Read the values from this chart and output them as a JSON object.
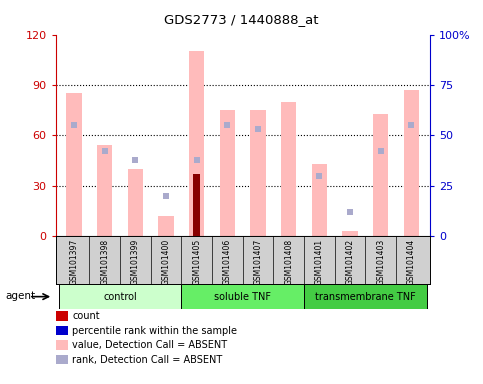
{
  "title": "GDS2773 / 1440888_at",
  "samples": [
    "GSM101397",
    "GSM101398",
    "GSM101399",
    "GSM101400",
    "GSM101405",
    "GSM101406",
    "GSM101407",
    "GSM101408",
    "GSM101401",
    "GSM101402",
    "GSM101403",
    "GSM101404"
  ],
  "groups": [
    {
      "label": "control",
      "start": 0,
      "end": 4,
      "color": "#ccffcc"
    },
    {
      "label": "soluble TNF",
      "start": 4,
      "end": 8,
      "color": "#66ee66"
    },
    {
      "label": "transmembrane TNF",
      "start": 8,
      "end": 12,
      "color": "#44cc44"
    }
  ],
  "pink_bar_values": [
    85,
    54,
    40,
    12,
    110,
    75,
    75,
    80,
    43,
    3,
    73,
    87
  ],
  "blue_square_values": [
    55,
    42,
    38,
    20,
    38,
    55,
    53,
    null,
    30,
    12,
    42,
    55
  ],
  "red_bar_value": 37,
  "red_bar_index": 4,
  "ylim_left": [
    0,
    120
  ],
  "ylim_right": [
    0,
    100
  ],
  "yticks_left": [
    0,
    30,
    60,
    90,
    120
  ],
  "yticks_right": [
    0,
    25,
    50,
    75,
    100
  ],
  "ytick_labels_left": [
    "0",
    "30",
    "60",
    "90",
    "120"
  ],
  "ytick_labels_right": [
    "0",
    "25",
    "50",
    "75",
    "100%"
  ],
  "left_axis_color": "#cc0000",
  "right_axis_color": "#0000cc",
  "pink_bar_color": "#ffbbbb",
  "blue_sq_color": "#aaaacc",
  "red_bar_color": "#880000",
  "legend_items": [
    {
      "color": "#cc0000",
      "label": "count"
    },
    {
      "color": "#0000cc",
      "label": "percentile rank within the sample"
    },
    {
      "color": "#ffbbbb",
      "label": "value, Detection Call = ABSENT"
    },
    {
      "color": "#aaaacc",
      "label": "rank, Detection Call = ABSENT"
    }
  ]
}
